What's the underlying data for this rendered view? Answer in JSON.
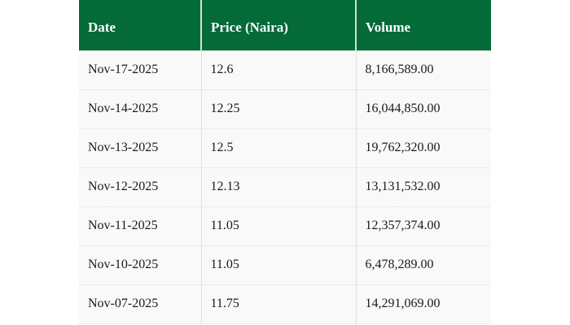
{
  "colors": {
    "header_bg": "#046a38",
    "header_text": "#ffffff",
    "row_bg": "#f9f9f9",
    "row_border": "#dddddd",
    "page_bg": "#ffffff"
  },
  "table": {
    "columns": {
      "date": "Date",
      "price": "Price (Naira)",
      "volume": "Volume"
    },
    "rows": [
      {
        "date": "Nov-17-2025",
        "price": "12.6",
        "volume": "8,166,589.00"
      },
      {
        "date": "Nov-14-2025",
        "price": "12.25",
        "volume": "16,044,850.00"
      },
      {
        "date": "Nov-13-2025",
        "price": "12.5",
        "volume": "19,762,320.00"
      },
      {
        "date": "Nov-12-2025",
        "price": "12.13",
        "volume": "13,131,532.00"
      },
      {
        "date": "Nov-11-2025",
        "price": "11.05",
        "volume": "12,357,374.00"
      },
      {
        "date": "Nov-10-2025",
        "price": "11.05",
        "volume": "6,478,289.00"
      },
      {
        "date": "Nov-07-2025",
        "price": "11.75",
        "volume": "14,291,069.00"
      }
    ]
  }
}
